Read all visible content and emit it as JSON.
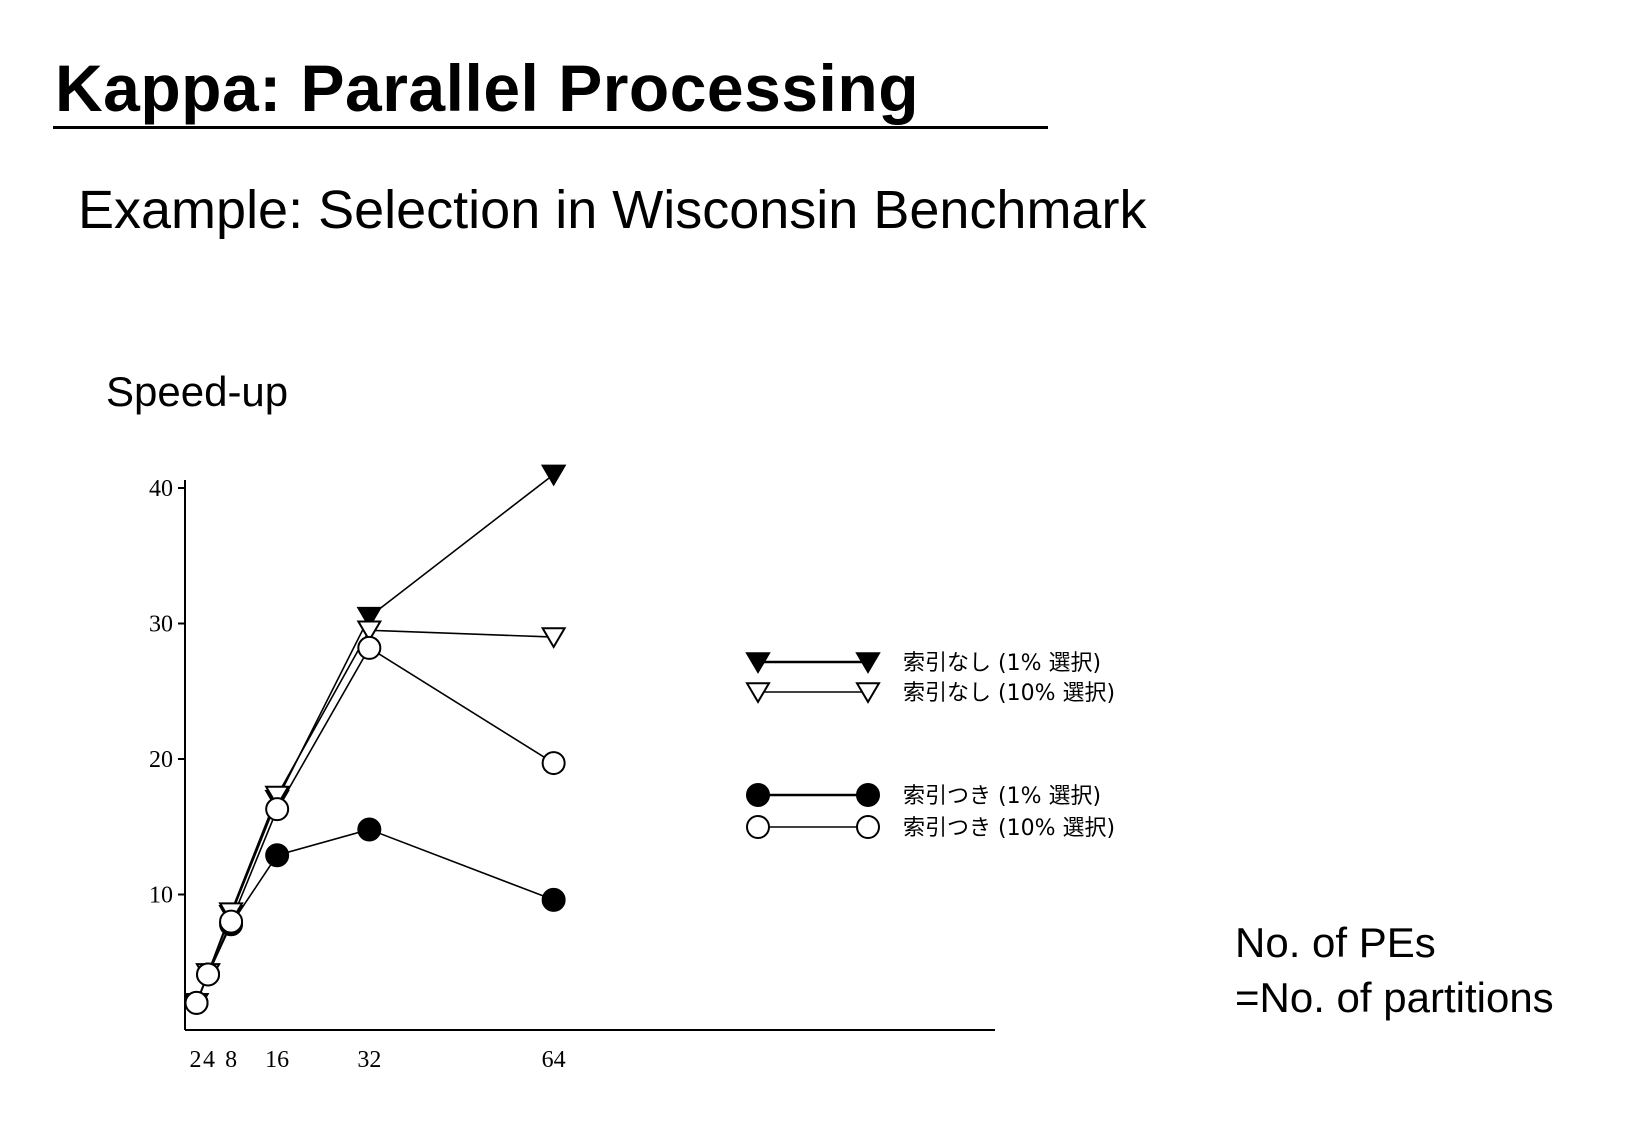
{
  "slide": {
    "title": "Kappa: Parallel Processing",
    "subtitle": "Example: Selection in Wisconsin Benchmark",
    "y_axis_title": "Speed-up",
    "x_axis_note_line1": "No. of PEs",
    "x_axis_note_line2": "=No. of partitions"
  },
  "chart_data": {
    "type": "line",
    "title": "",
    "xlabel": "No. of PEs =No. of partitions",
    "ylabel": "Speed-up",
    "x": [
      2,
      4,
      8,
      16,
      32,
      64
    ],
    "xticks": [
      "2",
      "4",
      "8",
      "16",
      "32",
      "64"
    ],
    "yticks": [
      "10",
      "20",
      "30",
      "40"
    ],
    "xlim": [
      0,
      70
    ],
    "ylim": [
      0,
      40
    ],
    "grid": false,
    "legend_position": "middle-right",
    "series": [
      {
        "name": "索引なし (1% 選択)",
        "marker": "filled-triangle-down",
        "values": [
          2,
          4.2,
          8.5,
          17,
          30.5,
          41
        ]
      },
      {
        "name": "索引なし (10% 選択)",
        "marker": "open-triangle-down",
        "values": [
          2,
          4.2,
          8.7,
          17.3,
          29.5,
          29
        ]
      },
      {
        "name": "索引つき (1% 選択)",
        "marker": "filled-circle",
        "values": [
          2,
          4.1,
          7.8,
          12.9,
          14.8,
          9.6
        ]
      },
      {
        "name": "索引つき (10% 選択)",
        "marker": "open-circle",
        "values": [
          2,
          4.1,
          8.0,
          16.3,
          28.2,
          19.7
        ]
      }
    ]
  }
}
